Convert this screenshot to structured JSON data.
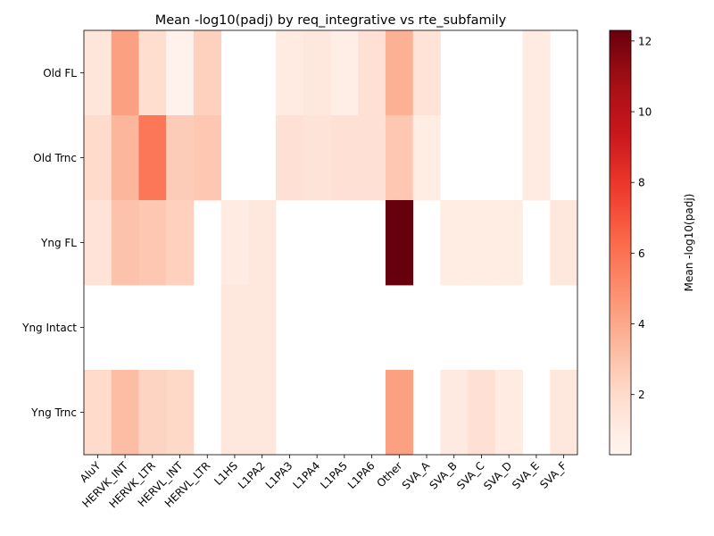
{
  "chart_data": {
    "type": "heatmap",
    "title": "Mean -log10(padj) by req_integrative vs rte_subfamily",
    "xlabel": "",
    "ylabel": "",
    "x_categories": [
      "AluY",
      "HERVK_INT",
      "HERVK_LTR",
      "HERVL_INT",
      "HERVL_LTR",
      "L1HS",
      "L1PA2",
      "L1PA3",
      "L1PA4",
      "L1PA5",
      "L1PA6",
      "Other",
      "SVA_A",
      "SVA_B",
      "SVA_C",
      "SVA_D",
      "SVA_E",
      "SVA_F"
    ],
    "y_categories": [
      "Old FL",
      "Old Trnc",
      "Yng FL",
      "Yng Intact",
      "Yng Trnc"
    ],
    "values": [
      [
        1.4,
        4.3,
        1.9,
        0.5,
        2.4,
        null,
        null,
        1.0,
        1.3,
        0.8,
        1.7,
        3.7,
        1.6,
        null,
        null,
        null,
        1.0,
        null
      ],
      [
        2.0,
        3.5,
        5.8,
        2.6,
        2.8,
        null,
        null,
        1.7,
        1.5,
        1.7,
        1.7,
        2.8,
        0.9,
        null,
        null,
        null,
        1.0,
        null
      ],
      [
        1.6,
        3.0,
        2.8,
        2.4,
        null,
        1.0,
        1.2,
        null,
        null,
        null,
        null,
        12.3,
        null,
        0.9,
        0.9,
        0.9,
        null,
        1.2
      ],
      [
        null,
        null,
        null,
        null,
        null,
        1.2,
        1.2,
        null,
        null,
        null,
        null,
        null,
        null,
        null,
        null,
        null,
        null,
        null
      ],
      [
        2.0,
        3.2,
        2.3,
        2.1,
        null,
        1.2,
        1.2,
        null,
        null,
        null,
        null,
        4.3,
        null,
        1.1,
        1.7,
        1.0,
        null,
        1.2
      ]
    ],
    "colorscale": "Reds",
    "colorbar": {
      "label": "Mean -log10(padj)",
      "range": [
        0.3,
        12.3
      ],
      "ticks": [
        2,
        4,
        6,
        8,
        10,
        12
      ]
    },
    "grid": false
  }
}
